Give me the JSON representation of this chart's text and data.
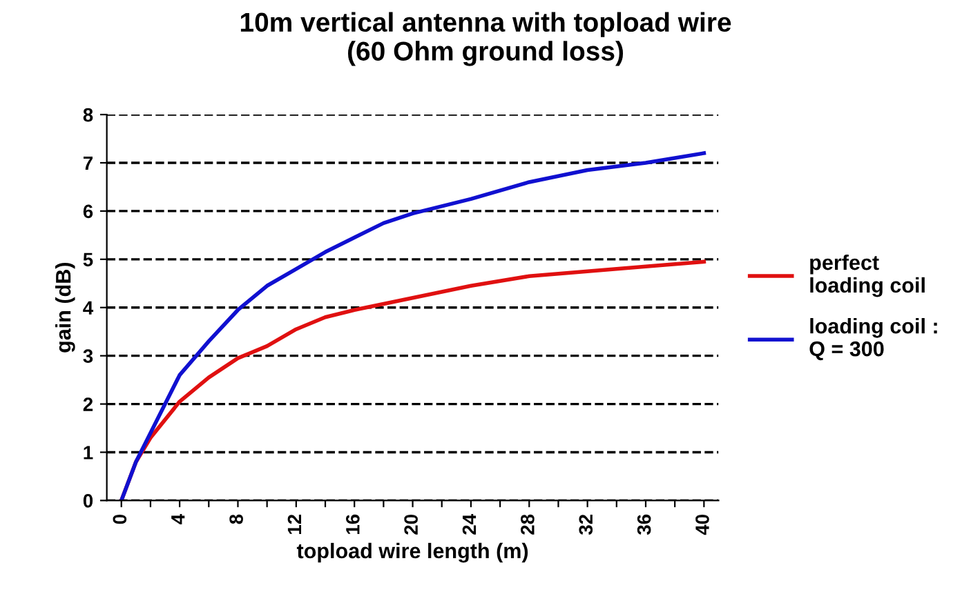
{
  "chart_data": {
    "type": "line",
    "title": "10m vertical antenna with topload wire\n(60 Ohm ground loss)",
    "xlabel": "topload wire length (m)",
    "ylabel": "gain (dB)",
    "xlim": [
      -1,
      41
    ],
    "xticks": [
      0,
      {
        "value": 2,
        "label": null
      },
      4,
      {
        "value": 6,
        "label": null
      },
      8,
      {
        "value": 10,
        "label": null
      },
      12,
      {
        "value": 14,
        "label": null
      },
      16,
      {
        "value": 18,
        "label": null
      },
      20,
      {
        "value": 22,
        "label": null
      },
      24,
      {
        "value": 26,
        "label": null
      },
      28,
      {
        "value": 30,
        "label": null
      },
      32,
      {
        "value": 34,
        "label": null
      },
      36,
      {
        "value": 38,
        "label": null
      },
      40
    ],
    "ylim": [
      0,
      8
    ],
    "yticks": [
      0,
      1,
      2,
      3,
      4,
      5,
      6,
      7,
      8
    ],
    "grid": "y",
    "line_style": "solid",
    "legend": "right",
    "series": [
      {
        "name": "perfect\nloading coil",
        "color": "#e01010",
        "x": [
          0,
          1,
          2,
          4,
          6,
          8,
          10,
          12,
          14,
          16,
          20,
          24,
          28,
          32,
          36,
          40
        ],
        "values": [
          0,
          0.8,
          1.3,
          2.05,
          2.55,
          2.95,
          3.2,
          3.55,
          3.8,
          3.95,
          4.2,
          4.45,
          4.65,
          4.75,
          4.85,
          4.95
        ]
      },
      {
        "name": "loading coil :\nQ = 300",
        "color": "#1010d0",
        "x": [
          0,
          1,
          2,
          4,
          6,
          8,
          10,
          12,
          14,
          16,
          18,
          20,
          24,
          28,
          32,
          36,
          40
        ],
        "values": [
          0,
          0.8,
          1.4,
          2.6,
          3.3,
          3.95,
          4.45,
          4.8,
          5.15,
          5.45,
          5.75,
          5.95,
          6.25,
          6.6,
          6.85,
          7.0,
          7.2
        ]
      }
    ]
  }
}
